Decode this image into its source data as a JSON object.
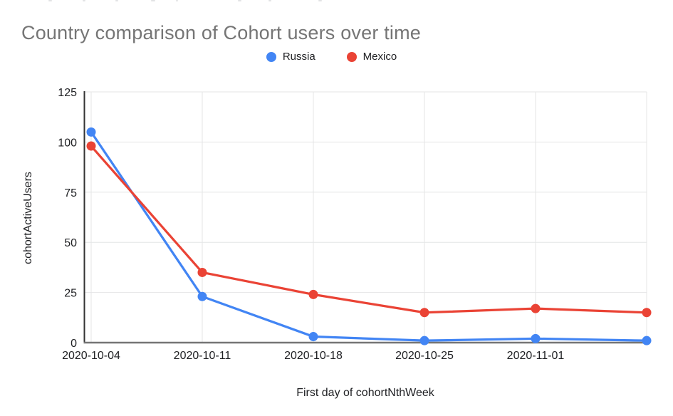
{
  "chart_data": {
    "type": "line",
    "title": "Country comparison of Cohort users over time",
    "xlabel": "First day of cohortNthWeek",
    "ylabel": "cohortActiveUsers",
    "categories": [
      "2020-10-04",
      "2020-10-11",
      "2020-10-18",
      "2020-10-25",
      "2020-11-01",
      ""
    ],
    "series": [
      {
        "name": "Russia",
        "color": "#4285F4",
        "values": [
          105,
          23,
          3,
          1,
          2,
          1
        ]
      },
      {
        "name": "Mexico",
        "color": "#EA4335",
        "values": [
          98,
          35,
          24,
          15,
          17,
          15
        ]
      }
    ],
    "ylim": [
      0,
      125
    ],
    "yticks": [
      0,
      25,
      50,
      75,
      100,
      125
    ],
    "grid": true,
    "legend_position": "top-center",
    "marker": "circle",
    "colors": {
      "gridline": "#e4e5e6",
      "y_axis_line": "#333333",
      "x_axis_line": "#757575",
      "title_text": "#757575",
      "tick_text": "#202124"
    }
  }
}
